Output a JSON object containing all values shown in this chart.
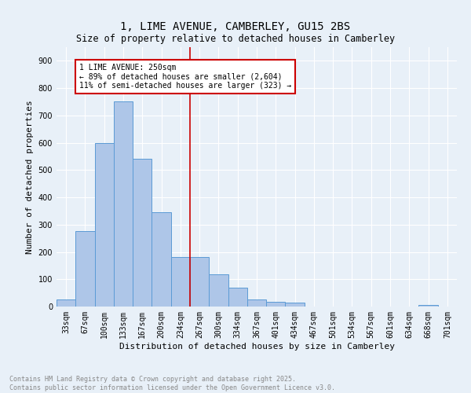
{
  "title": "1, LIME AVENUE, CAMBERLEY, GU15 2BS",
  "subtitle": "Size of property relative to detached houses in Camberley",
  "xlabel": "Distribution of detached houses by size in Camberley",
  "ylabel": "Number of detached properties",
  "categories": [
    "33sqm",
    "67sqm",
    "100sqm",
    "133sqm",
    "167sqm",
    "200sqm",
    "234sqm",
    "267sqm",
    "300sqm",
    "334sqm",
    "367sqm",
    "401sqm",
    "434sqm",
    "467sqm",
    "501sqm",
    "534sqm",
    "567sqm",
    "601sqm",
    "634sqm",
    "668sqm",
    "701sqm"
  ],
  "values": [
    25,
    275,
    600,
    750,
    540,
    345,
    180,
    180,
    118,
    68,
    25,
    17,
    15,
    0,
    0,
    0,
    0,
    0,
    0,
    5,
    0
  ],
  "bar_color": "#aec6e8",
  "bar_edge_color": "#5b9bd5",
  "vline_index": 6.5,
  "annotation_line1": "1 LIME AVENUE: 250sqm",
  "annotation_line2": "← 89% of detached houses are smaller (2,604)",
  "annotation_line3": "11% of semi-detached houses are larger (323) →",
  "vline_color": "#cc0000",
  "annotation_box_edge": "#cc0000",
  "ylim": [
    0,
    950
  ],
  "yticks": [
    0,
    100,
    200,
    300,
    400,
    500,
    600,
    700,
    800,
    900
  ],
  "background_color": "#e8f0f8",
  "grid_color": "#ffffff",
  "footer_line1": "Contains HM Land Registry data © Crown copyright and database right 2025.",
  "footer_line2": "Contains public sector information licensed under the Open Government Licence v3.0.",
  "title_fontsize": 10,
  "axis_label_fontsize": 8,
  "tick_fontsize": 7,
  "annotation_fontsize": 7,
  "footer_fontsize": 6
}
